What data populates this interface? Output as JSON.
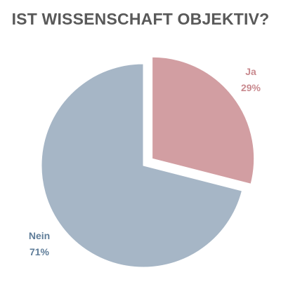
{
  "chart_data": {
    "type": "pie",
    "title": "IST WISSENSCHAFT OBJEKTIV?",
    "slices": [
      {
        "label": "Ja",
        "value": 29,
        "display": "29%",
        "color": "#d29ea2",
        "label_color": "#c98a8f",
        "exploded": true
      },
      {
        "label": "Nein",
        "value": 71,
        "display": "71%",
        "color": "#a6b6c6",
        "label_color": "#5f7d99",
        "exploded": false
      }
    ]
  }
}
